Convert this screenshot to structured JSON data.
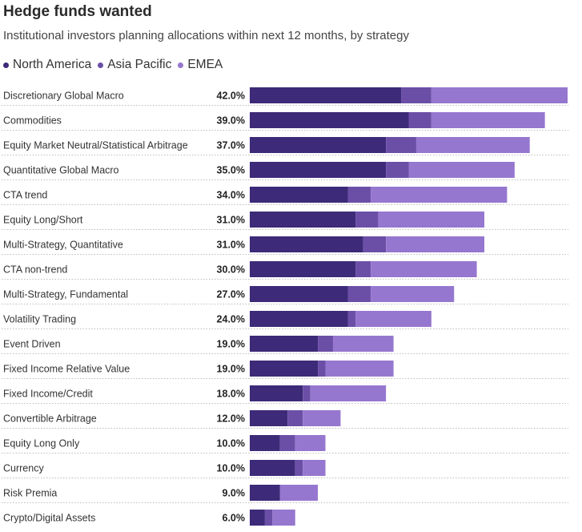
{
  "colors": {
    "north_america": "#3d2a78",
    "asia_pacific": "#6b4fa7",
    "emea": "#9677cf",
    "divider": "#bdbdbd"
  },
  "chart_data": {
    "type": "bar",
    "orientation": "horizontal",
    "stacked": true,
    "title": "Hedge funds wanted",
    "subtitle": "Institutional investors planning allocations within next 12 months, by strategy",
    "legend": [
      "North America",
      "Asia Pacific",
      "EMEA"
    ],
    "legend_position": "top-left",
    "xlim": [
      0,
      42
    ],
    "categories": [
      "Discretionary Global Macro",
      "Commodities",
      "Equity Market Neutral/Statistical Arbitrage",
      "Quantitative Global Macro",
      "CTA trend",
      "Equity Long/Short",
      "Multi-Strategy, Quantitative",
      "CTA non-trend",
      "Multi-Strategy, Fundamental",
      "Volatility Trading",
      "Event Driven",
      "Fixed Income Relative Value",
      "Fixed Income/Credit",
      "Convertible Arbitrage",
      "Equity Long Only",
      "Currency",
      "Risk Premia",
      "Crypto/Digital Assets"
    ],
    "totals": [
      42.0,
      39.0,
      37.0,
      35.0,
      34.0,
      31.0,
      31.0,
      30.0,
      27.0,
      24.0,
      19.0,
      19.0,
      18.0,
      12.0,
      10.0,
      10.0,
      9.0,
      6.0
    ],
    "total_labels": [
      "42.0%",
      "39.0%",
      "37.0%",
      "35.0%",
      "34.0%",
      "31.0%",
      "31.0%",
      "30.0%",
      "27.0%",
      "24.0%",
      "19.0%",
      "19.0%",
      "18.0%",
      "12.0%",
      "10.0%",
      "10.0%",
      "9.0%",
      "6.0%"
    ],
    "series": [
      {
        "name": "North America",
        "values": [
          20.0,
          21.0,
          18.0,
          18.0,
          13.0,
          14.0,
          15.0,
          14.0,
          13.0,
          13.0,
          9.0,
          9.0,
          7.0,
          5.0,
          4.0,
          6.0,
          4.0,
          2.0
        ]
      },
      {
        "name": "Asia Pacific",
        "values": [
          4.0,
          3.0,
          4.0,
          3.0,
          3.0,
          3.0,
          3.0,
          2.0,
          3.0,
          1.0,
          2.0,
          1.0,
          1.0,
          2.0,
          2.0,
          1.0,
          0.0,
          1.0
        ]
      },
      {
        "name": "EMEA",
        "values": [
          18.0,
          15.0,
          15.0,
          14.0,
          18.0,
          14.0,
          13.0,
          14.0,
          11.0,
          10.0,
          8.0,
          9.0,
          10.0,
          5.0,
          4.0,
          3.0,
          5.0,
          3.0
        ]
      }
    ]
  }
}
